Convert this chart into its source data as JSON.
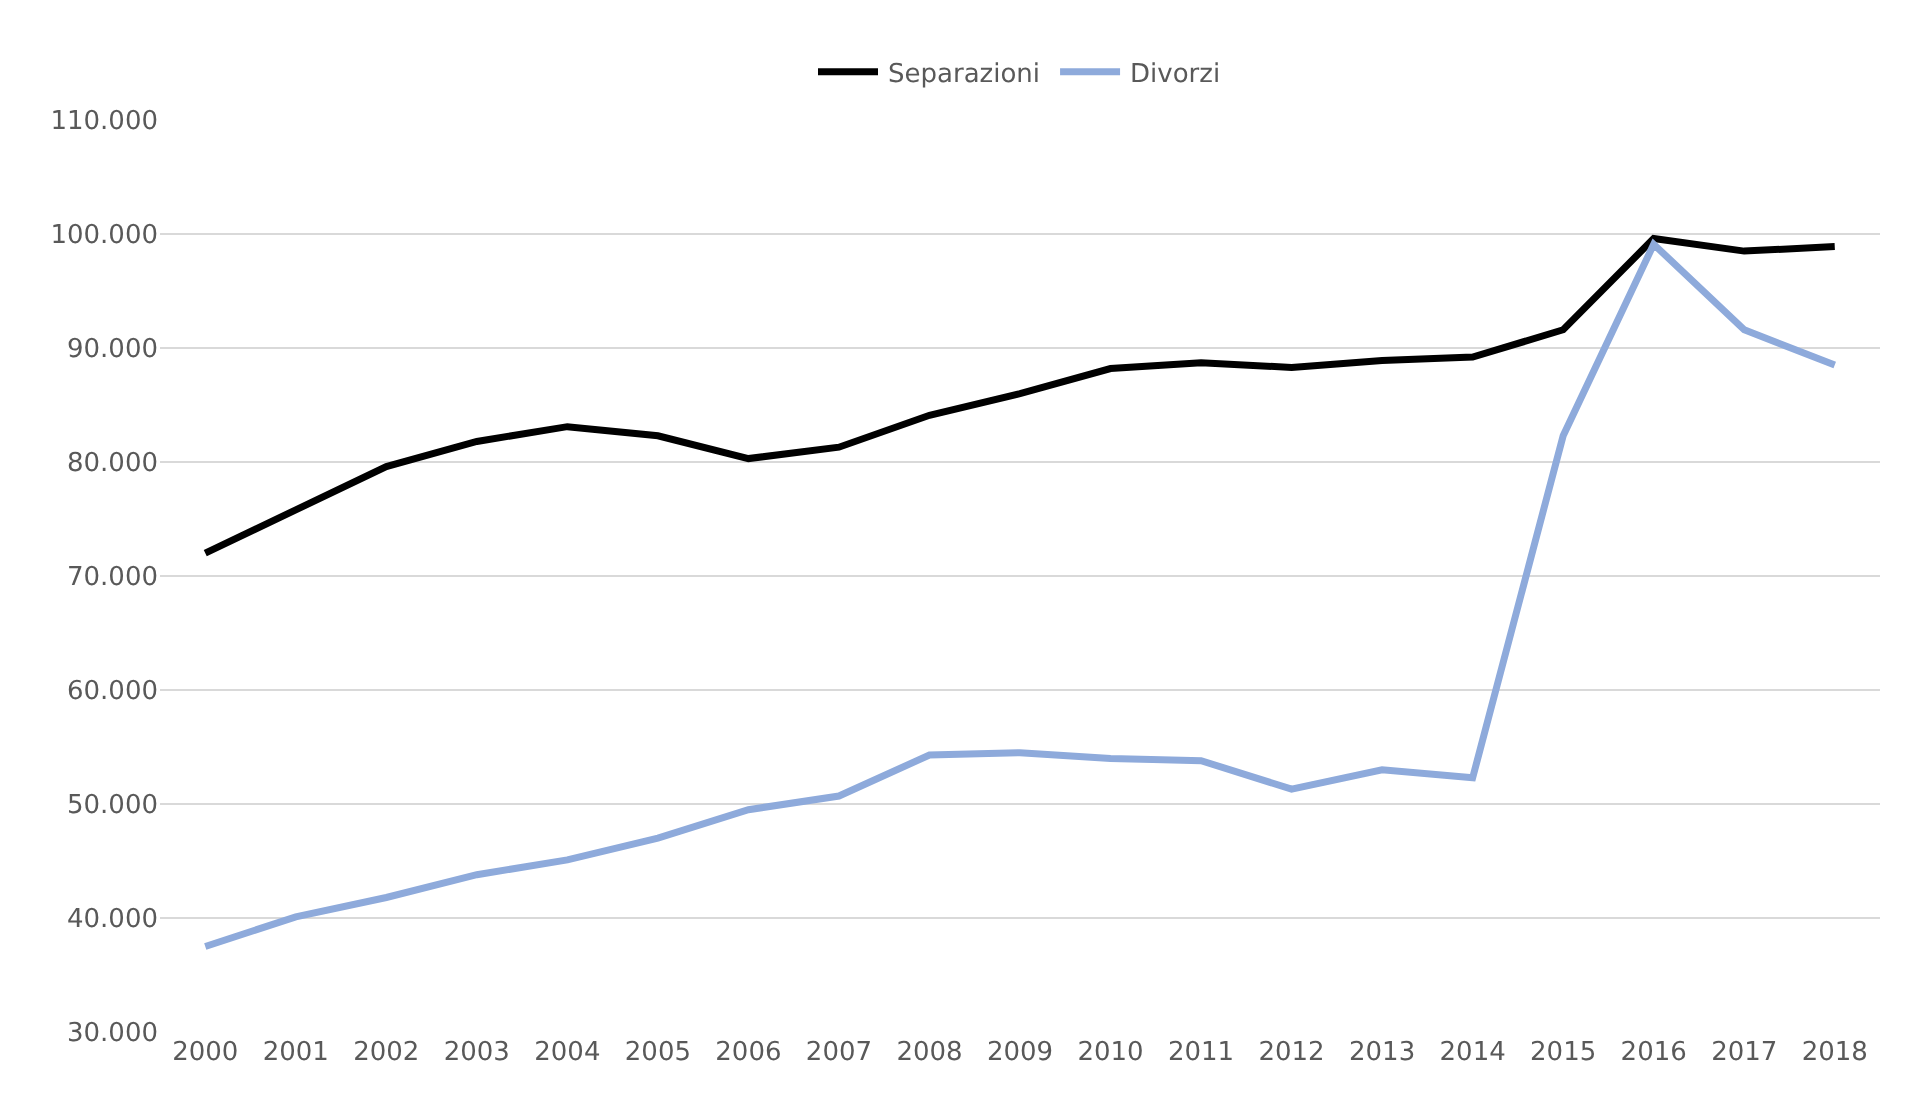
{
  "chart_data": {
    "type": "line",
    "categories": [
      "2000",
      "2001",
      "2002",
      "2003",
      "2004",
      "2005",
      "2006",
      "2007",
      "2008",
      "2009",
      "2010",
      "2011",
      "2012",
      "2013",
      "2014",
      "2015",
      "2016",
      "2017",
      "2018"
    ],
    "series": [
      {
        "name": "Separazioni",
        "color": "#000000",
        "values": [
          72000,
          75800,
          79600,
          81800,
          83100,
          82300,
          80300,
          81300,
          84100,
          86000,
          88200,
          88700,
          88300,
          88900,
          89200,
          91600,
          99600,
          98500,
          98900
        ]
      },
      {
        "name": "Divorzi",
        "color": "#8eaadb",
        "values": [
          37500,
          40100,
          41800,
          43800,
          45100,
          47000,
          49500,
          50700,
          54300,
          54500,
          54000,
          53800,
          51300,
          53000,
          52300,
          82300,
          99100,
          91600,
          88500
        ]
      }
    ],
    "ylim": [
      30000,
      110000
    ],
    "yticks": [
      {
        "value": 30000,
        "label": "30.000"
      },
      {
        "value": 40000,
        "label": "40.000"
      },
      {
        "value": 50000,
        "label": "50.000"
      },
      {
        "value": 60000,
        "label": "60.000"
      },
      {
        "value": 70000,
        "label": "70.000"
      },
      {
        "value": 80000,
        "label": "80.000"
      },
      {
        "value": 90000,
        "label": "90.000"
      },
      {
        "value": 100000,
        "label": "100.000"
      },
      {
        "value": 110000,
        "label": "110.000"
      }
    ],
    "grid": "y",
    "legend": "top",
    "marker": "none",
    "line_style": "solid"
  }
}
